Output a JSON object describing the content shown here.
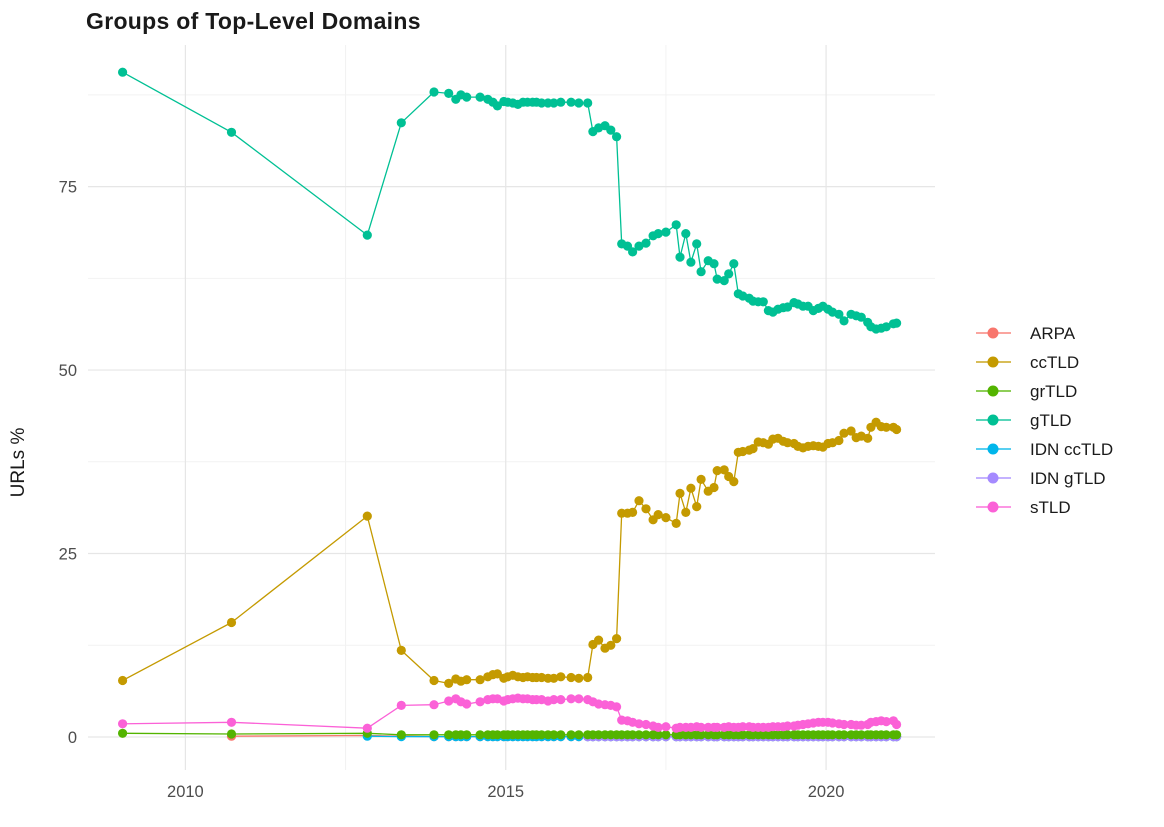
{
  "chart_data": {
    "type": "line",
    "title": "Groups of Top-Level Domains",
    "xlabel": "",
    "ylabel": "URLs %",
    "x_tick_labels": [
      "2010",
      "2015",
      "2020"
    ],
    "x_ticks": [
      2010,
      2015,
      2020
    ],
    "x_minor": [
      2012.5,
      2017.5
    ],
    "y_tick_labels": [
      "0",
      "25",
      "50",
      "75"
    ],
    "y_ticks": [
      0,
      25,
      50,
      75
    ],
    "y_minor": [
      12.5,
      37.5,
      62.5,
      87.5
    ],
    "x_range": [
      2008.48,
      2021.7
    ],
    "y_range": [
      -4.5,
      94.3
    ],
    "grid": true,
    "legend_position": "right",
    "legend_order": [
      "ARPA",
      "ccTLD",
      "grTLD",
      "gTLD",
      "IDN ccTLD",
      "IDN gTLD",
      "sTLD"
    ],
    "draw_order": [
      "ARPA",
      "IDN ccTLD",
      "IDN gTLD",
      "grTLD",
      "ccTLD",
      "gTLD",
      "sTLD"
    ],
    "colors": {
      "ARPA": "#F8766D",
      "ccTLD": "#C49A00",
      "grTLD": "#53B400",
      "gTLD": "#00C094",
      "IDN ccTLD": "#00B6EB",
      "IDN gTLD": "#A58AFF",
      "sTLD": "#FB61D7",
      "grid_major": "#e6e6e6",
      "grid_minor": "#f2f2f2",
      "tick_text": "#4d4d4d",
      "axis_title_text": "#1a1a1a"
    },
    "dense_x": [
      2013.88,
      2014.11,
      2014.22,
      2014.3,
      2014.39,
      2014.6,
      2014.72,
      2014.8,
      2014.87,
      2014.97,
      2015.03,
      2015.11,
      2015.19,
      2015.27,
      2015.34,
      2015.42,
      2015.48,
      2015.56,
      2015.66,
      2015.75,
      2015.86,
      2016.02,
      2016.14,
      2016.28,
      2016.36,
      2016.45,
      2016.55,
      2016.64,
      2016.73,
      2016.81,
      2016.9,
      2016.98,
      2017.08,
      2017.19,
      2017.3,
      2017.38,
      2017.5,
      2017.66,
      2017.72,
      2017.81,
      2017.89,
      2017.98,
      2018.05,
      2018.16,
      2018.25,
      2018.3,
      2018.41,
      2018.48,
      2018.56,
      2018.63,
      2018.7,
      2018.8,
      2018.86,
      2018.94,
      2019.02,
      2019.1,
      2019.17,
      2019.25,
      2019.33,
      2019.4,
      2019.5,
      2019.56,
      2019.64,
      2019.72,
      2019.8,
      2019.88,
      2019.95,
      2020.03,
      2020.1,
      2020.2,
      2020.28,
      2020.39,
      2020.47,
      2020.55,
      2020.65,
      2020.7,
      2020.78,
      2020.86,
      2020.94,
      2021.05,
      2021.1
    ],
    "series": [
      {
        "name": "gTLD",
        "early_points": [
          [
            2009.02,
            90.6
          ],
          [
            2010.72,
            82.4
          ],
          [
            2012.84,
            68.4
          ],
          [
            2013.37,
            83.7
          ]
        ],
        "dense_y": [
          87.9,
          87.7,
          86.9,
          87.5,
          87.2,
          87.2,
          86.9,
          86.5,
          86.0,
          86.6,
          86.5,
          86.4,
          86.2,
          86.5,
          86.5,
          86.5,
          86.5,
          86.4,
          86.4,
          86.4,
          86.5,
          86.5,
          86.4,
          86.4,
          82.5,
          83.0,
          83.3,
          82.7,
          81.8,
          67.2,
          66.9,
          66.1,
          66.9,
          67.3,
          68.3,
          68.6,
          68.8,
          69.8,
          65.4,
          68.6,
          64.7,
          67.2,
          63.4,
          64.9,
          64.5,
          62.4,
          62.2,
          63.1,
          64.5,
          60.4,
          60.1,
          59.8,
          59.4,
          59.3,
          59.3,
          58.1,
          57.9,
          58.3,
          58.5,
          58.6,
          59.2,
          59.0,
          58.7,
          58.7,
          58.1,
          58.4,
          58.7,
          58.3,
          57.9,
          57.6,
          56.7,
          57.6,
          57.4,
          57.2,
          56.5,
          55.9,
          55.6,
          55.7,
          55.9,
          56.3,
          56.4
        ]
      },
      {
        "name": "ccTLD",
        "early_points": [
          [
            2009.02,
            7.7
          ],
          [
            2010.72,
            15.6
          ],
          [
            2012.84,
            30.1
          ],
          [
            2013.37,
            11.8
          ]
        ],
        "dense_y": [
          7.7,
          7.3,
          7.9,
          7.6,
          7.8,
          7.8,
          8.2,
          8.5,
          8.6,
          8.0,
          8.2,
          8.4,
          8.2,
          8.1,
          8.2,
          8.1,
          8.1,
          8.1,
          8.0,
          8.0,
          8.2,
          8.1,
          8.0,
          8.1,
          12.6,
          13.2,
          12.1,
          12.5,
          13.4,
          30.5,
          30.5,
          30.6,
          32.2,
          31.1,
          29.6,
          30.3,
          29.9,
          29.1,
          33.2,
          30.6,
          33.9,
          31.4,
          35.1,
          33.5,
          34.0,
          36.3,
          36.4,
          35.5,
          34.8,
          38.8,
          38.9,
          39.1,
          39.3,
          40.2,
          40.1,
          39.9,
          40.6,
          40.7,
          40.3,
          40.1,
          40.0,
          39.6,
          39.4,
          39.6,
          39.7,
          39.6,
          39.5,
          40.0,
          40.1,
          40.4,
          41.4,
          41.7,
          40.8,
          41.0,
          40.7,
          42.2,
          42.9,
          42.3,
          42.2,
          42.2,
          41.9
        ]
      },
      {
        "name": "sTLD",
        "early_points": [
          [
            2009.02,
            1.8
          ],
          [
            2010.72,
            2.0
          ],
          [
            2012.84,
            1.2
          ],
          [
            2013.37,
            4.3
          ]
        ],
        "dense_y": [
          4.4,
          4.9,
          5.2,
          4.8,
          4.5,
          4.8,
          5.1,
          5.2,
          5.2,
          4.9,
          5.1,
          5.2,
          5.3,
          5.2,
          5.2,
          5.1,
          5.1,
          5.1,
          4.9,
          5.1,
          5.1,
          5.2,
          5.2,
          5.1,
          4.8,
          4.5,
          4.4,
          4.3,
          4.1,
          2.3,
          2.2,
          2.0,
          1.8,
          1.7,
          1.5,
          1.3,
          1.4,
          1.2,
          1.3,
          1.3,
          1.3,
          1.4,
          1.3,
          1.3,
          1.3,
          1.3,
          1.3,
          1.4,
          1.3,
          1.3,
          1.4,
          1.4,
          1.3,
          1.3,
          1.3,
          1.3,
          1.4,
          1.4,
          1.4,
          1.5,
          1.5,
          1.6,
          1.7,
          1.8,
          1.9,
          2.0,
          2.0,
          2.0,
          1.9,
          1.8,
          1.7,
          1.7,
          1.6,
          1.6,
          1.7,
          2.0,
          2.1,
          2.2,
          2.1,
          2.2,
          1.7
        ]
      },
      {
        "name": "grTLD",
        "early_points": [
          [
            2009.02,
            0.5
          ],
          [
            2010.72,
            0.4
          ],
          [
            2012.84,
            0.5
          ],
          [
            2013.37,
            0.3
          ]
        ],
        "dense_flat": {
          "from": 2013.88,
          "value": 0.3
        }
      },
      {
        "name": "ARPA",
        "early_points": [
          [
            2010.72,
            0.1
          ],
          [
            2012.84,
            0.2
          ],
          [
            2013.37,
            0.1
          ]
        ],
        "dense_flat": {
          "from": 2013.88,
          "value": 0.05
        }
      },
      {
        "name": "IDN ccTLD",
        "early_points": [
          [
            2012.84,
            0.1
          ],
          [
            2013.37,
            0.05
          ]
        ],
        "dense_flat": {
          "from": 2013.88,
          "value": 0.05
        }
      },
      {
        "name": "IDN gTLD",
        "early_points": [],
        "dense_flat": {
          "from": 2016.28,
          "value": 0.05
        }
      }
    ]
  }
}
